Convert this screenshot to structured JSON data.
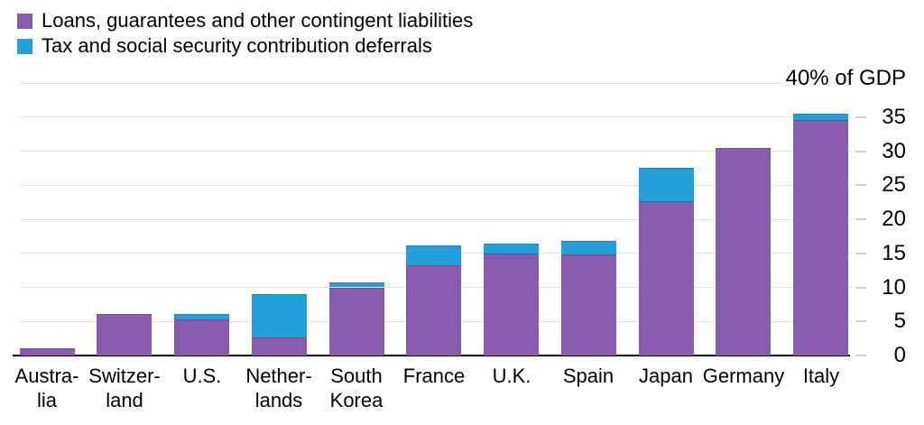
{
  "legend": {
    "items": [
      {
        "label": "Loans, guarantees and other contingent liabilities",
        "color": "#8a5caf"
      },
      {
        "label": "Tax and social security contribution deferrals",
        "color": "#23a0d9"
      }
    ]
  },
  "chart_data": {
    "type": "bar",
    "stacked": true,
    "unit": "% of GDP",
    "axis_title": "40% of GDP",
    "categories": [
      "Australia",
      "Switzerland",
      "U.S.",
      "Netherlands",
      "South Korea",
      "France",
      "U.K.",
      "Spain",
      "Japan",
      "Germany",
      "Italy"
    ],
    "category_labels": [
      "Austra-\nlia",
      "Switzer-\nland",
      "U.S.",
      "Nether-\nlands",
      "South\nKorea",
      "France",
      "U.K.",
      "Spain",
      "Japan",
      "Germany",
      "Italy"
    ],
    "series": [
      {
        "name": "Loans, guarantees and other contingent liabilities",
        "color": "#8a5caf",
        "values": [
          1.1,
          6.1,
          5.3,
          2.7,
          10.0,
          13.2,
          15.0,
          14.8,
          22.7,
          30.5,
          34.6
        ]
      },
      {
        "name": "Tax and social security contribution deferrals",
        "color": "#23a0d9",
        "values": [
          0,
          0,
          0.8,
          6.3,
          0.7,
          2.9,
          1.4,
          2.0,
          4.8,
          0,
          0.9
        ]
      }
    ],
    "ylim": [
      0,
      40
    ],
    "yticks": [
      0,
      5,
      10,
      15,
      20,
      25,
      30,
      35,
      40
    ],
    "ytick_labels": [
      "35",
      "30",
      "25",
      "20",
      "15",
      "10",
      "5",
      "0"
    ],
    "grid": true,
    "legend_position": "top-left"
  },
  "colors": {
    "background": "#ffffff",
    "gridline": "#e2e2e2",
    "baseline": "#000000",
    "tick_dash": "#d0d0d0",
    "text": "#000000"
  }
}
